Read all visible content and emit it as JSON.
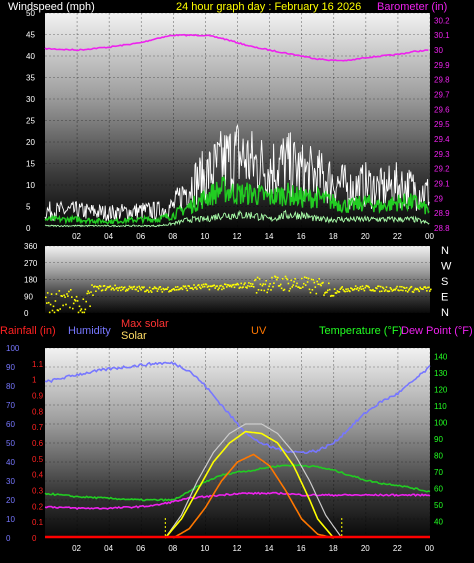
{
  "header": {
    "left": "Windspeed (mph)",
    "center": "24 hour graph day : February 16 2026",
    "right": "Barometer (in)"
  },
  "colors": {
    "barometer": "#ee22ee",
    "wind_gust": "#ffffff",
    "wind_avg": "#22cc22",
    "wind_light": "#aaffaa",
    "direction": "#ffff00",
    "humidity": "#7777ff",
    "temperature": "#22cc22",
    "dew_point": "#ee22ee",
    "solar": "#ffff00",
    "max_solar": "#cccccc",
    "uv": "#ff7700",
    "rain": "#ff0000",
    "title_yellow": "#ffff00",
    "right_green": "#22ff22"
  },
  "chart_data": [
    {
      "type": "line",
      "title": "24 hour graph day : February 16 2026",
      "ylabel": "Windspeed (mph)",
      "y2label": "Barometer (in)",
      "x_ticks": [
        "02",
        "04",
        "06",
        "08",
        "10",
        "12",
        "14",
        "16",
        "18",
        "20",
        "22",
        "00"
      ],
      "ylim": [
        0,
        50
      ],
      "y_ticks": [
        "0",
        "5",
        "10",
        "15",
        "20",
        "25",
        "30",
        "35",
        "40",
        "45",
        "50"
      ],
      "y2lim": [
        28.8,
        30.25
      ],
      "y2_ticks": [
        "28.8",
        "28.9",
        "29",
        "29.1",
        "29.2",
        "29.3",
        "29.4",
        "29.5",
        "29.6",
        "29.7",
        "29.8",
        "29.9",
        "30",
        "30.1",
        "30.2"
      ],
      "grid": true,
      "x_hours": [
        0,
        2,
        4,
        6,
        7,
        8,
        9,
        10,
        11,
        12,
        13,
        14,
        15,
        16,
        17,
        18,
        19,
        20,
        21,
        22,
        23,
        24
      ],
      "series": [
        {
          "name": "Barometer (in)",
          "axis": "right",
          "values": [
            30.01,
            30.0,
            30.02,
            30.05,
            30.08,
            30.1,
            30.1,
            30.1,
            30.08,
            30.05,
            30.02,
            30.0,
            29.98,
            29.96,
            29.94,
            29.93,
            29.93,
            29.95,
            29.96,
            29.97,
            29.99,
            30.0
          ]
        },
        {
          "name": "Wind gust (mph)",
          "values": [
            4,
            4,
            3.5,
            4,
            4,
            5,
            10,
            12,
            15,
            17,
            15,
            14,
            15,
            13,
            12,
            11,
            9,
            10,
            9,
            10,
            9,
            8
          ]
        },
        {
          "name": "Wind speed (mph)",
          "values": [
            2,
            2,
            1.5,
            2,
            2,
            3,
            5,
            7,
            9,
            8,
            8,
            7,
            8,
            7,
            7,
            6,
            5,
            6,
            5,
            6,
            6,
            4
          ]
        },
        {
          "name": "Wind low (mph)",
          "values": [
            0.5,
            0.5,
            0.5,
            0.5,
            0.5,
            1,
            2,
            2,
            3,
            3,
            3,
            2,
            3,
            3,
            2,
            2,
            2,
            2,
            2,
            2,
            2,
            1
          ]
        }
      ]
    },
    {
      "type": "scatter",
      "ylabel": "Wind direction",
      "ylim": [
        0,
        360
      ],
      "y_ticks": [
        "0",
        "90",
        "180",
        "270",
        "360"
      ],
      "compass": [
        "N",
        "W",
        "S",
        "E",
        "N"
      ],
      "x_hours": [
        0,
        0.5,
        1,
        1.5,
        2,
        2.5,
        3,
        4,
        5,
        6,
        7,
        8,
        9,
        10,
        11,
        12,
        13,
        14,
        15,
        16,
        17,
        18,
        19,
        20,
        21,
        22,
        23,
        24
      ],
      "values": [
        60,
        40,
        90,
        70,
        20,
        30,
        130,
        135,
        130,
        128,
        125,
        130,
        135,
        140,
        138,
        145,
        150,
        155,
        160,
        150,
        140,
        120,
        130,
        132,
        128,
        130,
        125,
        128
      ]
    },
    {
      "type": "line",
      "legend": [
        "Rainfall (in)",
        "Humidity",
        "Max solar",
        "Solar",
        "UV",
        "Temperature (°F)",
        "Dew Point (°F)"
      ],
      "x_ticks": [
        "02",
        "04",
        "06",
        "08",
        "10",
        "12",
        "14",
        "16",
        "18",
        "20",
        "22",
        "00"
      ],
      "y_left_ticks": [
        "0",
        "10",
        "20",
        "30",
        "40",
        "50",
        "60",
        "70",
        "80",
        "90",
        "100"
      ],
      "y_left2_ticks": [
        "0",
        "0.1",
        "0.2",
        "0.3",
        "0.4",
        "0.5",
        "0.6",
        "0.7",
        "0.8",
        "0.9",
        "1",
        "1.1"
      ],
      "y_right_ticks": [
        "40",
        "50",
        "60",
        "70",
        "80",
        "90",
        "100",
        "110",
        "120",
        "130",
        "140"
      ],
      "ylim": [
        0,
        100
      ],
      "y2lim": [
        30,
        145
      ],
      "x_hours": [
        0,
        2,
        4,
        6,
        7,
        8,
        9,
        10,
        11,
        12,
        13,
        14,
        15,
        16,
        17,
        18,
        19,
        20,
        21,
        22,
        23,
        24
      ],
      "series": [
        {
          "name": "Humidity",
          "axis": "left",
          "values": [
            82,
            86,
            89,
            91,
            92,
            92,
            88,
            80,
            70,
            60,
            52,
            48,
            46,
            45,
            46,
            50,
            58,
            66,
            72,
            76,
            83,
            90
          ]
        },
        {
          "name": "Temperature (°F)",
          "axis": "right",
          "values": [
            57,
            55,
            54,
            53,
            53,
            53,
            58,
            64,
            68,
            70,
            71,
            73,
            74,
            74,
            73,
            71,
            68,
            65,
            63,
            62,
            60,
            58
          ]
        },
        {
          "name": "Dew Point (°F)",
          "axis": "right",
          "values": [
            49,
            48,
            48,
            49,
            50,
            52,
            54,
            55,
            56,
            57,
            57,
            57,
            57,
            56,
            56,
            56,
            56,
            56,
            56,
            56,
            56,
            56
          ]
        },
        {
          "name": "Max solar",
          "x_hours": [
            7.5,
            8.5,
            9.5,
            10.5,
            11.5,
            12.5,
            13.5,
            14.5,
            15.5,
            16.5,
            17.5,
            18.5
          ],
          "values": [
            0,
            12,
            30,
            45,
            55,
            60,
            60,
            55,
            45,
            30,
            12,
            0
          ]
        },
        {
          "name": "Solar",
          "x_hours": [
            7.5,
            8.5,
            9.5,
            10.5,
            11.5,
            12.5,
            13.5,
            14.5,
            15.5,
            16.5,
            17,
            17.5,
            18
          ],
          "values": [
            0,
            10,
            25,
            40,
            50,
            56,
            55,
            50,
            38,
            20,
            10,
            5,
            0
          ]
        },
        {
          "name": "UV",
          "x_hours": [
            8,
            9,
            10,
            11,
            12,
            13,
            14,
            15,
            16,
            17,
            18
          ],
          "values": [
            0,
            5,
            16,
            30,
            40,
            44,
            38,
            25,
            10,
            2,
            0
          ]
        },
        {
          "name": "Rainfall (in)",
          "axis": "left2",
          "values": [
            0,
            0,
            0,
            0,
            0,
            0,
            0,
            0,
            0,
            0,
            0,
            0,
            0,
            0,
            0,
            0,
            0,
            0,
            0,
            0,
            0,
            0
          ]
        }
      ]
    }
  ]
}
